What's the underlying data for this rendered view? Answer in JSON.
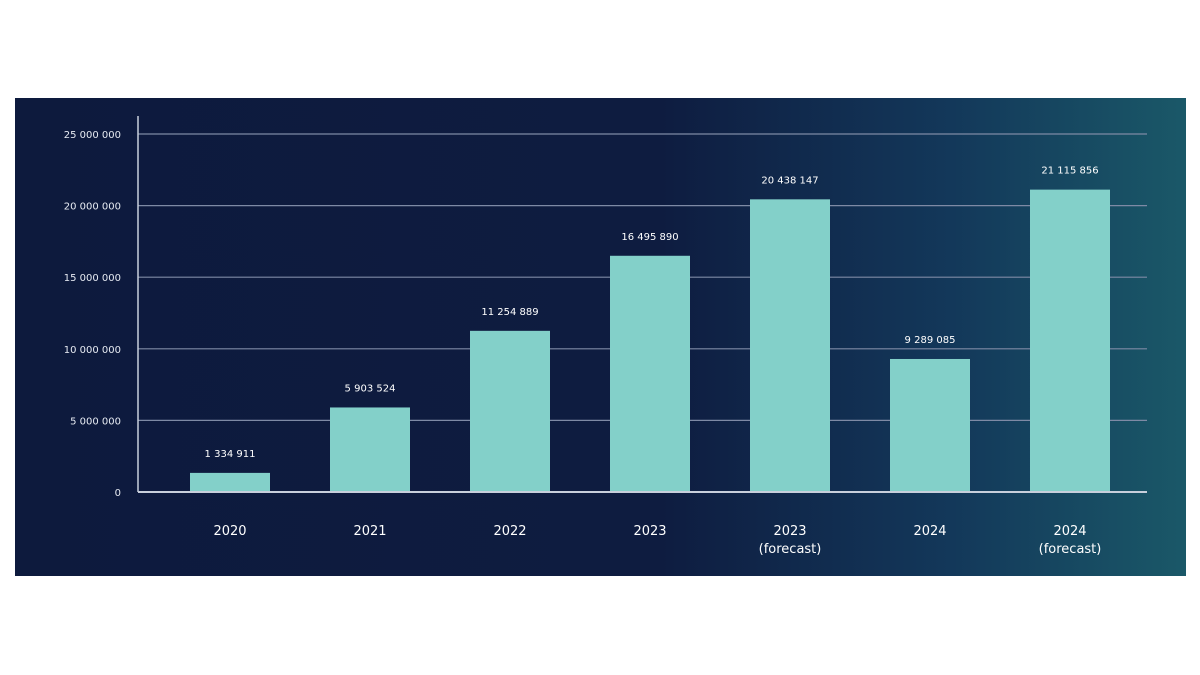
{
  "chart_data": {
    "type": "bar",
    "categories": [
      [
        "2020"
      ],
      [
        "2021"
      ],
      [
        "2022"
      ],
      [
        "2023"
      ],
      [
        "2023",
        "(forecast)"
      ],
      [
        "2024"
      ],
      [
        "2024",
        "(forecast)"
      ]
    ],
    "values": [
      1334911,
      5903524,
      11254889,
      16495890,
      20438147,
      9289085,
      21115856
    ],
    "data_labels": [
      "1 334 911",
      "5 903 524",
      "11 254 889",
      "16 495 890",
      "20 438 147",
      "9 289 085",
      "21 115 856"
    ],
    "yticks": [
      0,
      5000000,
      10000000,
      15000000,
      20000000,
      25000000
    ],
    "ytick_labels": [
      "0",
      "5 000 000",
      "10 000 000",
      "15 000 000",
      "20 000 000",
      "25 000 000"
    ],
    "ylim": [
      0,
      25000000
    ],
    "grid": true,
    "legend": false,
    "title": "",
    "xlabel": "",
    "ylabel": "",
    "colors": {
      "bar": "#83d0c9",
      "grid": "#7e8aa5",
      "axis": "#c8cfdc",
      "background_start": "#0d1a3d",
      "background_end": "#1a5868"
    }
  }
}
